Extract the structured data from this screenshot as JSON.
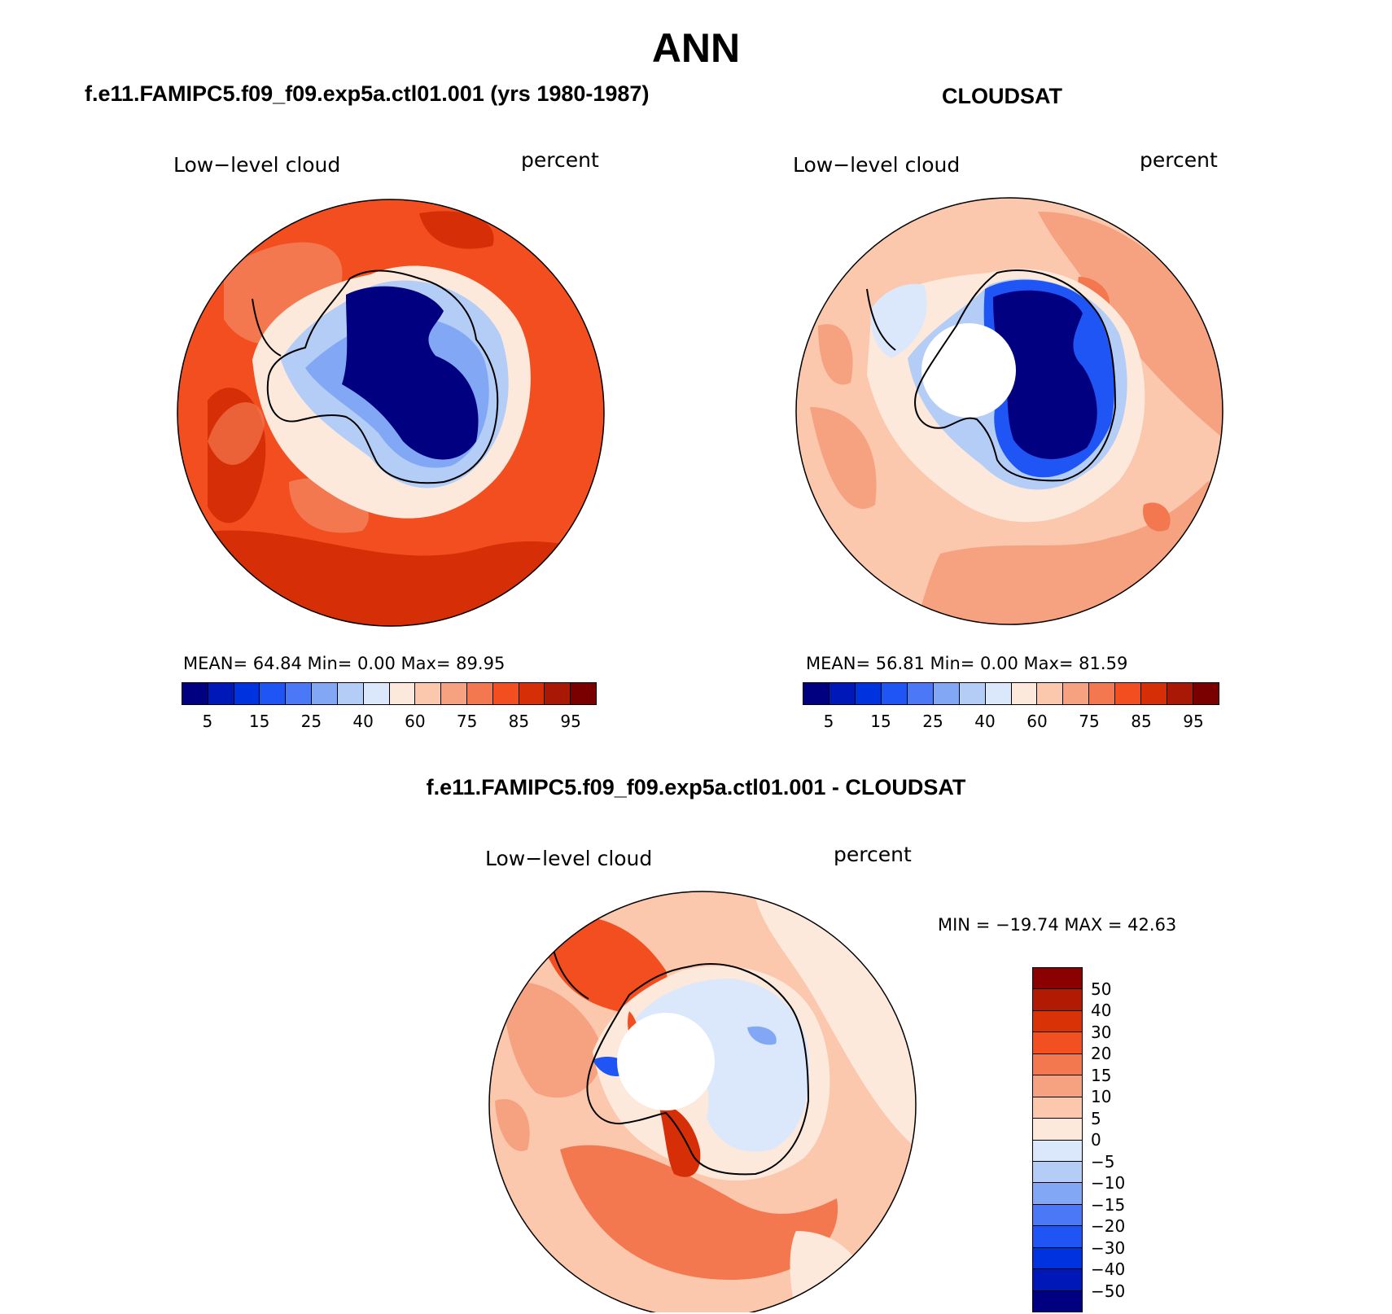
{
  "figure": {
    "title": "ANN"
  },
  "panels": [
    {
      "title": "f.e11.FAMIPC5.f09_f09.exp5a.ctl01.001 (yrs 1980-1987)",
      "variable": "Low−level cloud",
      "units": "percent",
      "stats": "MEAN=   64.84   Min=      0.00   Max=   89.95",
      "colorbar": {
        "colors": [
          "#000080",
          "#0018b8",
          "#0033e0",
          "#1f55f5",
          "#4a78f7",
          "#82a8f5",
          "#b4cdf6",
          "#dbe8fb",
          "#fde9dc",
          "#fbc7ad",
          "#f6a281",
          "#f3784f",
          "#f24e1f",
          "#d62e06",
          "#a81804",
          "#7a0000"
        ],
        "labels": [
          "5",
          "15",
          "25",
          "40",
          "60",
          "75",
          "85",
          "95"
        ]
      }
    },
    {
      "title": "CLOUDSAT",
      "variable": "Low−level cloud",
      "units": "percent",
      "stats": "MEAN=   56.81   Min=      0.00   Max=   81.59",
      "colorbar": {
        "colors": [
          "#000080",
          "#0018b8",
          "#0033e0",
          "#1f55f5",
          "#4a78f7",
          "#82a8f5",
          "#b4cdf6",
          "#dbe8fb",
          "#fde9dc",
          "#fbc7ad",
          "#f6a281",
          "#f3784f",
          "#f24e1f",
          "#d62e06",
          "#a81804",
          "#7a0000"
        ],
        "labels": [
          "5",
          "15",
          "25",
          "40",
          "60",
          "75",
          "85",
          "95"
        ]
      }
    },
    {
      "title": "f.e11.FAMIPC5.f09_f09.exp5a.ctl01.001 - CLOUDSAT",
      "variable": "Low−level cloud",
      "units": "percent",
      "stats": "MIN = −19.74 MAX =   42.63",
      "colorbar": {
        "colors": [
          "#8b0000",
          "#b21a04",
          "#d93206",
          "#f25020",
          "#f3784f",
          "#f6a281",
          "#fbc7ad",
          "#fde9dc",
          "#dbe8fb",
          "#b4cdf6",
          "#82a8f5",
          "#4a78f7",
          "#1f55f5",
          "#0033e0",
          "#0018b8",
          "#000080"
        ],
        "labels": [
          "50",
          "40",
          "30",
          "20",
          "15",
          "10",
          "5",
          "0",
          "−5",
          "−10",
          "−15",
          "−20",
          "−30",
          "−40",
          "−50"
        ]
      }
    }
  ]
}
